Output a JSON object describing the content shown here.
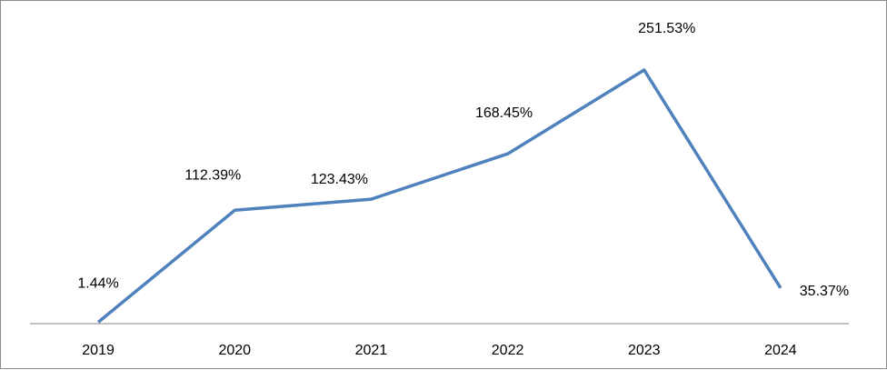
{
  "chart_data": {
    "type": "line",
    "title": "",
    "xlabel": "",
    "ylabel": "",
    "categories": [
      "2019",
      "2020",
      "2021",
      "2022",
      "2023",
      "2024"
    ],
    "series": [
      {
        "values": [
          1.44,
          112.39,
          123.43,
          168.45,
          251.53,
          35.37
        ],
        "labels": [
          "1.44%",
          "112.39%",
          "123.43%",
          "168.45%",
          "251.53%",
          "35.37%"
        ],
        "color": "#4f81bd"
      }
    ],
    "ylim": [
      0,
      251.53
    ],
    "grid": false,
    "legend": "none",
    "y_axis_visible": false
  }
}
